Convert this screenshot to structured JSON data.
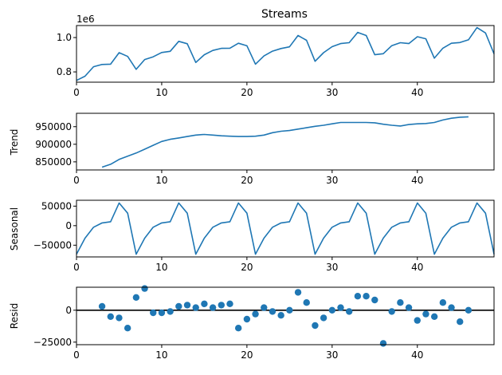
{
  "chart_data": [
    {
      "type": "line",
      "title": "Streams",
      "ylabel": "",
      "offset_label": "1e6",
      "xlim": [
        0,
        49
      ],
      "ylim": [
        740000,
        1070000
      ],
      "xticks": [
        0,
        10,
        20,
        30,
        40
      ],
      "yticks": [
        800000,
        1000000
      ],
      "ytick_labels": [
        "0.8",
        "1.0"
      ],
      "color": "#1f77b4",
      "x": [
        0,
        1,
        2,
        3,
        4,
        5,
        6,
        7,
        8,
        9,
        10,
        11,
        12,
        13,
        14,
        15,
        16,
        17,
        18,
        19,
        20,
        21,
        22,
        23,
        24,
        25,
        26,
        27,
        28,
        29,
        30,
        31,
        32,
        33,
        34,
        35,
        36,
        37,
        38,
        39,
        40,
        41,
        42,
        43,
        44,
        45,
        46,
        47,
        48,
        49
      ],
      "values": [
        750000,
        775000,
        830000,
        843000,
        845000,
        912000,
        890000,
        815000,
        872000,
        888000,
        913000,
        920000,
        978000,
        964000,
        855000,
        900000,
        925000,
        937000,
        938000,
        967000,
        952000,
        845000,
        893000,
        921000,
        936000,
        946000,
        1012000,
        984000,
        862000,
        912000,
        947000,
        965000,
        970000,
        1030000,
        1012000,
        900000,
        906000,
        953000,
        970000,
        965000,
        1005000,
        993000,
        880000,
        938000,
        967000,
        971000,
        987000,
        1058000,
        1027000,
        905000
      ]
    },
    {
      "type": "line",
      "title": "",
      "ylabel": "Trend",
      "xlim": [
        0,
        49
      ],
      "ylim": [
        827000,
        988000
      ],
      "xticks": [
        0,
        10,
        20,
        30,
        40
      ],
      "yticks": [
        850000,
        900000,
        950000
      ],
      "ytick_labels": [
        "850000",
        "900000",
        "950000"
      ],
      "color": "#1f77b4",
      "x": [
        3,
        4,
        5,
        6,
        7,
        8,
        9,
        10,
        11,
        12,
        13,
        14,
        15,
        16,
        17,
        18,
        19,
        20,
        21,
        22,
        23,
        24,
        25,
        26,
        27,
        28,
        29,
        30,
        31,
        32,
        33,
        34,
        35,
        36,
        37,
        38,
        39,
        40,
        41,
        42,
        43,
        44,
        45,
        46
      ],
      "values": [
        835000,
        843000,
        857000,
        866000,
        875000,
        886000,
        897000,
        908000,
        914000,
        918000,
        922000,
        926000,
        928000,
        926000,
        924000,
        923000,
        922000,
        922000,
        923000,
        926000,
        933000,
        937000,
        939000,
        943000,
        947000,
        951000,
        954000,
        958000,
        962000,
        962000,
        962000,
        962000,
        961000,
        957000,
        954000,
        952000,
        956000,
        958000,
        959000,
        962000,
        969000,
        974000,
        977000,
        978000
      ]
    },
    {
      "type": "line",
      "title": "",
      "ylabel": "Seasonal",
      "xlim": [
        0,
        49
      ],
      "ylim": [
        -80000,
        65000
      ],
      "xticks": [
        0,
        10,
        20,
        30,
        40
      ],
      "yticks": [
        -50000,
        0,
        50000
      ],
      "ytick_labels": [
        "−50000",
        "0",
        "50000"
      ],
      "color": "#1f77b4",
      "x": [
        0,
        1,
        2,
        3,
        4,
        5,
        6,
        7,
        8,
        9,
        10,
        11,
        12,
        13,
        14,
        15,
        16,
        17,
        18,
        19,
        20,
        21,
        22,
        23,
        24,
        25,
        26,
        27,
        28,
        29,
        30,
        31,
        32,
        33,
        34,
        35,
        36,
        37,
        38,
        39,
        40,
        41,
        42,
        43,
        44,
        45,
        46,
        47,
        48,
        49
      ],
      "values": [
        -73000,
        -32000,
        -4000,
        7000,
        10000,
        58000,
        32000,
        -73000,
        -32000,
        -4000,
        7000,
        10000,
        58000,
        32000,
        -73000,
        -32000,
        -4000,
        7000,
        10000,
        58000,
        32000,
        -73000,
        -32000,
        -4000,
        7000,
        10000,
        58000,
        32000,
        -73000,
        -32000,
        -4000,
        7000,
        10000,
        58000,
        32000,
        -73000,
        -32000,
        -4000,
        7000,
        10000,
        58000,
        32000,
        -73000,
        -32000,
        -4000,
        7000,
        10000,
        58000,
        32000,
        -73000
      ]
    },
    {
      "type": "scatter",
      "title": "",
      "ylabel": "Resid",
      "xlim": [
        0,
        49
      ],
      "ylim": [
        -27000,
        18000
      ],
      "xticks": [
        0,
        10,
        20,
        30,
        40
      ],
      "yticks": [
        -25000,
        0
      ],
      "ytick_labels": [
        "−25000",
        "0"
      ],
      "zero_line": true,
      "color": "#1f77b4",
      "x": [
        3,
        4,
        5,
        6,
        7,
        8,
        9,
        10,
        11,
        12,
        13,
        14,
        15,
        16,
        17,
        18,
        19,
        20,
        21,
        22,
        23,
        24,
        25,
        26,
        27,
        28,
        29,
        30,
        31,
        32,
        33,
        34,
        35,
        36,
        37,
        38,
        39,
        40,
        41,
        42,
        43,
        44,
        45,
        46
      ],
      "values": [
        3000,
        -5000,
        -6000,
        -14000,
        10000,
        17000,
        -2000,
        -2000,
        -1000,
        3000,
        4000,
        2000,
        5000,
        2000,
        4000,
        5000,
        -14000,
        -7000,
        -3000,
        2000,
        -1000,
        -4000,
        0,
        14000,
        6000,
        -12000,
        -6000,
        0,
        2000,
        -1000,
        11000,
        11000,
        8000,
        -26000,
        -1000,
        6000,
        2000,
        -8000,
        -3000,
        -5000,
        6000,
        2000,
        -9000,
        0
      ]
    }
  ]
}
